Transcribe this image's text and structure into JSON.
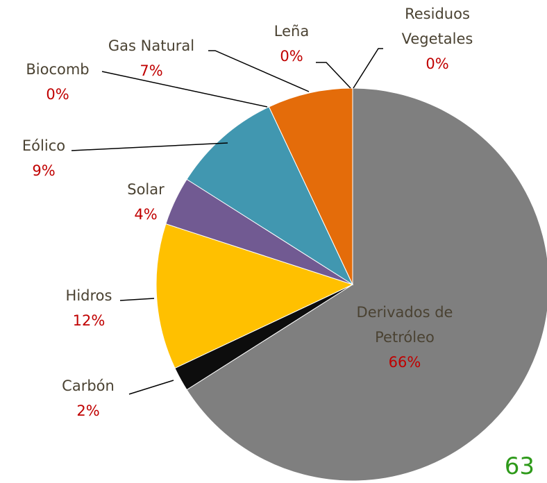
{
  "chart_data": {
    "type": "pie",
    "categories": [
      "Derivados de Petróleo",
      "Carbón",
      "Hidros",
      "Solar",
      "Eólico",
      "Biocomb",
      "Gas Natural",
      "Leña",
      "Residuos Vegetales"
    ],
    "values": [
      66,
      2,
      12,
      4,
      9,
      0,
      7,
      0,
      0
    ],
    "value_labels": [
      "66%",
      "2%",
      "12%",
      "4%",
      "9%",
      "0%",
      "7%",
      "0%",
      "0%"
    ],
    "colors": [
      "#7f7f7f",
      "#0d0d0d",
      "#ffc000",
      "#715a92",
      "#4197b0",
      "#8fb04a",
      "#e46c0a",
      "#9a5b2e",
      "#4f81bd"
    ]
  },
  "page_number": "63"
}
